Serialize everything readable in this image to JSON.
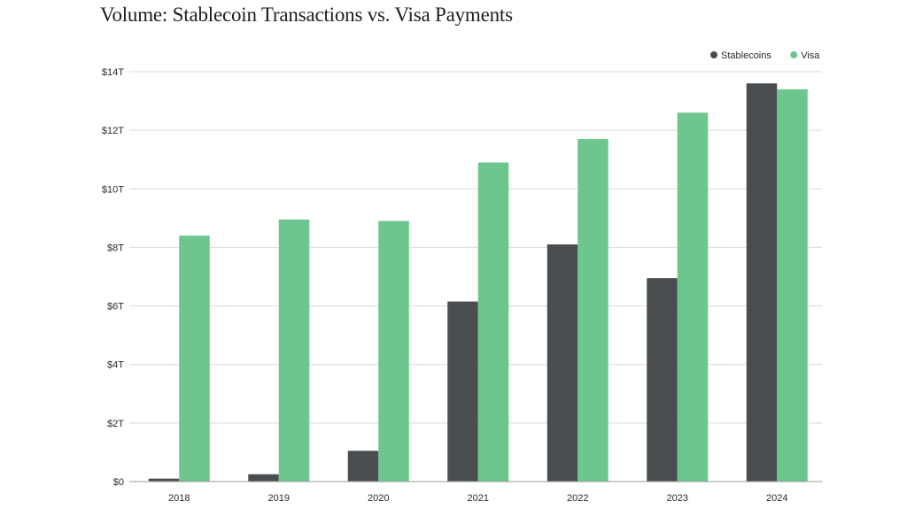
{
  "chart_data": {
    "type": "bar",
    "title": "Volume: Stablecoin Transactions vs. Visa Payments",
    "categories": [
      "2018",
      "2019",
      "2020",
      "2021",
      "2022",
      "2023",
      "2024"
    ],
    "series": [
      {
        "name": "Stablecoins",
        "color": "#4a4d4f",
        "values": [
          0.1,
          0.25,
          1.05,
          6.15,
          8.1,
          6.95,
          13.6
        ]
      },
      {
        "name": "Visa",
        "color": "#6cc68e",
        "values": [
          8.4,
          8.95,
          8.9,
          10.9,
          11.7,
          12.6,
          13.4
        ]
      }
    ],
    "ylim": [
      0,
      14
    ],
    "yticks": [
      0,
      2,
      4,
      6,
      8,
      10,
      12,
      14
    ],
    "ytick_labels": [
      "$0",
      "$2T",
      "$4T",
      "$6T",
      "$8T",
      "$10T",
      "$12T",
      "$14T"
    ],
    "xlabel": "",
    "ylabel": "",
    "unit": "trillions USD",
    "grid": true,
    "legend_position": "top-right"
  }
}
